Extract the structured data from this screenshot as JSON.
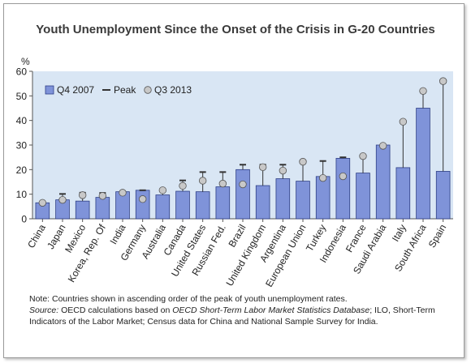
{
  "chart_data": {
    "type": "bar",
    "title": "Youth Unemployment Since the Onset of the Crisis in G-20 Countries",
    "ylabel": "%",
    "ylim": [
      0,
      60
    ],
    "yticks": [
      "0",
      "10",
      "20",
      "30",
      "40",
      "50",
      "60"
    ],
    "grid": false,
    "legend_position": "top-left",
    "categories": [
      "China",
      "Japan",
      "Mexico",
      "Korea, Rep. Of",
      "India",
      "Germany",
      "Australia",
      "Canada",
      "United States",
      "Russian Fed.",
      "Brazil",
      "United Kingdom",
      "Argentina",
      "European Union",
      "Turkey",
      "Indonesia",
      "France",
      "Saudi Arabia",
      "Italy",
      "South Africa",
      "Spain"
    ],
    "series": [
      {
        "name": "Q4 2007",
        "values": [
          6.5,
          7.7,
          7.2,
          8.7,
          11.0,
          11.6,
          9.7,
          11.2,
          11.0,
          13.0,
          20.0,
          13.5,
          16.3,
          15.3,
          17.2,
          24.6,
          18.6,
          30.0,
          20.8,
          45.0,
          19.3
        ]
      },
      {
        "name": "Peak",
        "values": [
          6.5,
          10.1,
          10.6,
          10.5,
          11.0,
          11.6,
          12.0,
          15.6,
          19.0,
          19.0,
          22.0,
          22.0,
          22.0,
          23.5,
          23.5,
          25.0,
          25.5,
          30.0,
          39.5,
          52.0,
          55.5
        ]
      },
      {
        "name": "Q3 2013",
        "values": [
          6.5,
          7.7,
          9.6,
          9.3,
          10.6,
          8.0,
          11.6,
          13.4,
          15.5,
          14.3,
          14.0,
          21.0,
          19.6,
          23.2,
          16.6,
          17.3,
          25.5,
          29.7,
          39.5,
          52.0,
          56.0
        ]
      }
    ],
    "colors": {
      "bar_fill": "#7f93d9",
      "bar_edge": "#2e3f86",
      "marker_fill": "#c8c8c8",
      "marker_edge": "#555555",
      "peak": "#333333",
      "plot_background": "#d9e6f4"
    }
  },
  "notes": {
    "line1": "Note: Countries shown in ascending order of the peak of youth unemployment rates.",
    "source_label": "Source:",
    "source_text_a": " OECD calculations based on ",
    "source_db": "OECD Short-Term Labor Market Statistics Database",
    "source_text_b": "; ILO, Short-Term Indicators of the Labor Market; Census data for China and National Sample Survey for India."
  }
}
